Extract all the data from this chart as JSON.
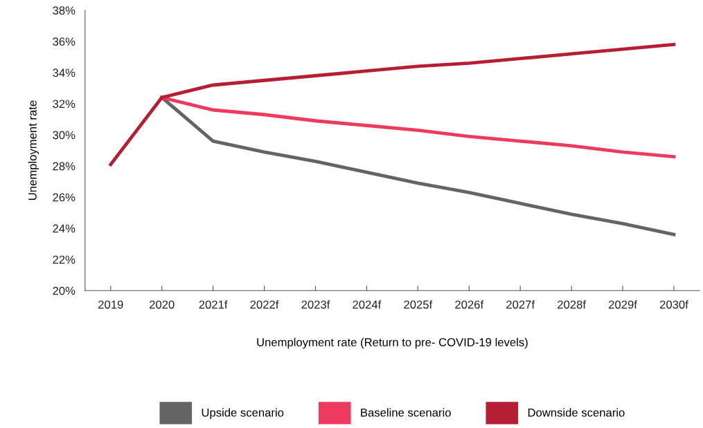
{
  "chart_data": {
    "type": "line",
    "xlabel": "Unemployment rate (Return to pre- COVID-19 levels)",
    "ylabel": "Unemployment rate",
    "categories": [
      "2019",
      "2020",
      "2021f",
      "2022f",
      "2023f",
      "2024f",
      "2025f",
      "2026f",
      "2027f",
      "2028f",
      "2029f",
      "2030f"
    ],
    "series": [
      {
        "name": "Upside scenario",
        "color": "#646464",
        "values": [
          null,
          32.4,
          29.6,
          28.9,
          28.3,
          27.6,
          26.9,
          26.3,
          25.6,
          24.9,
          24.3,
          23.6
        ]
      },
      {
        "name": "Baseline scenario",
        "color": "#ee3a5e",
        "values": [
          null,
          32.4,
          31.6,
          31.3,
          30.9,
          30.6,
          30.3,
          29.9,
          29.6,
          29.3,
          28.9,
          28.6
        ]
      },
      {
        "name": "Downside scenario",
        "color": "#b61f33",
        "values": [
          28.1,
          32.4,
          33.2,
          33.5,
          33.8,
          34.1,
          34.4,
          34.6,
          34.9,
          35.2,
          35.5,
          35.8
        ]
      }
    ],
    "ylim": [
      20,
      38
    ],
    "yticks": [
      {
        "value": 20,
        "label": "20%"
      },
      {
        "value": 22,
        "label": "22%"
      },
      {
        "value": 24,
        "label": "24%"
      },
      {
        "value": 26,
        "label": "26%"
      },
      {
        "value": 28,
        "label": "28%"
      },
      {
        "value": 30,
        "label": "30%"
      },
      {
        "value": 32,
        "label": "32%"
      },
      {
        "value": 34,
        "label": "34%"
      },
      {
        "value": 36,
        "label": "36%"
      },
      {
        "value": 38,
        "label": "38%"
      }
    ],
    "grid": false,
    "legend": "bottom",
    "marker": "none",
    "line_style": "solid"
  }
}
